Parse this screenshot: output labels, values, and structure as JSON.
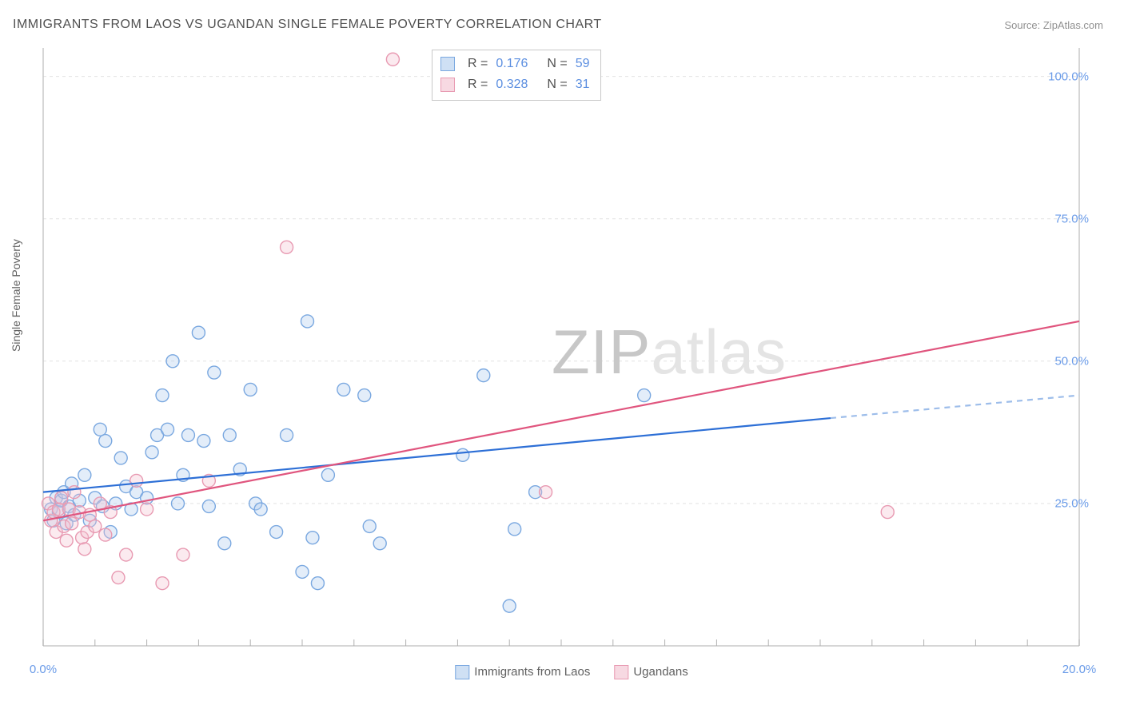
{
  "title": "IMMIGRANTS FROM LAOS VS UGANDAN SINGLE FEMALE POVERTY CORRELATION CHART",
  "source_prefix": "Source: ",
  "source_name": "ZipAtlas.com",
  "ylabel": "Single Female Poverty",
  "watermark_zip": "ZIP",
  "watermark_atlas": "atlas",
  "chart": {
    "type": "scatter",
    "background_color": "#ffffff",
    "grid_color": "#e2e2e2",
    "axis_color": "#c8c8c8",
    "tick_color": "#b0b0b0",
    "label_fontsize": 14,
    "tick_fontsize": 15,
    "title_fontsize": 16,
    "xlim": [
      0,
      20
    ],
    "ylim": [
      0,
      105
    ],
    "xticks": [
      {
        "v": 0,
        "label": "0.0%"
      },
      {
        "v": 20,
        "label": "20.0%"
      }
    ],
    "yticks": [
      {
        "v": 25,
        "label": "25.0%"
      },
      {
        "v": 50,
        "label": "50.0%"
      },
      {
        "v": 75,
        "label": "75.0%"
      },
      {
        "v": 100,
        "label": "100.0%"
      }
    ],
    "xtick_minor_step": 1,
    "marker_radius": 8,
    "marker_stroke_width": 1.4,
    "marker_fill_opacity": 0.35,
    "trend_line_width": 2.2,
    "series": [
      {
        "name": "Immigrants from Laos",
        "color_stroke": "#7aa8e0",
        "color_fill": "#aecbed",
        "trend_color": "#2d6fd6",
        "trend_dash_color": "#9dbdea",
        "trend": {
          "x1": 0,
          "y1": 27,
          "x2": 15.2,
          "y2": 40,
          "x2_dash": 20,
          "y2_dash": 44
        },
        "points": [
          [
            0.15,
            24
          ],
          [
            0.2,
            22
          ],
          [
            0.25,
            26
          ],
          [
            0.3,
            23.5
          ],
          [
            0.35,
            25.5
          ],
          [
            0.4,
            27
          ],
          [
            0.45,
            21.5
          ],
          [
            0.5,
            24.5
          ],
          [
            0.55,
            28.5
          ],
          [
            0.6,
            23
          ],
          [
            0.7,
            25.5
          ],
          [
            0.8,
            30
          ],
          [
            0.9,
            22
          ],
          [
            1.0,
            26
          ],
          [
            1.1,
            38
          ],
          [
            1.15,
            24.5
          ],
          [
            1.2,
            36
          ],
          [
            1.3,
            20
          ],
          [
            1.4,
            25
          ],
          [
            1.5,
            33
          ],
          [
            1.6,
            28
          ],
          [
            1.7,
            24
          ],
          [
            1.8,
            27
          ],
          [
            2.0,
            26
          ],
          [
            2.1,
            34
          ],
          [
            2.2,
            37
          ],
          [
            2.3,
            44
          ],
          [
            2.4,
            38
          ],
          [
            2.5,
            50
          ],
          [
            2.6,
            25
          ],
          [
            2.7,
            30
          ],
          [
            2.8,
            37
          ],
          [
            3.0,
            55
          ],
          [
            3.1,
            36
          ],
          [
            3.2,
            24.5
          ],
          [
            3.3,
            48
          ],
          [
            3.5,
            18
          ],
          [
            3.6,
            37
          ],
          [
            3.8,
            31
          ],
          [
            4.0,
            45
          ],
          [
            4.1,
            25
          ],
          [
            4.2,
            24
          ],
          [
            4.5,
            20
          ],
          [
            4.7,
            37
          ],
          [
            5.0,
            13
          ],
          [
            5.1,
            57
          ],
          [
            5.2,
            19
          ],
          [
            5.3,
            11
          ],
          [
            5.5,
            30
          ],
          [
            5.8,
            45
          ],
          [
            6.2,
            44
          ],
          [
            6.3,
            21
          ],
          [
            6.5,
            18
          ],
          [
            8.1,
            33.5
          ],
          [
            8.5,
            47.5
          ],
          [
            9.0,
            7
          ],
          [
            9.1,
            20.5
          ],
          [
            9.5,
            27
          ],
          [
            11.6,
            44
          ]
        ]
      },
      {
        "name": "Ugandans",
        "color_stroke": "#e89ab2",
        "color_fill": "#f3c3d0",
        "trend_color": "#e0557e",
        "trend": {
          "x1": 0,
          "y1": 22,
          "x2": 20,
          "y2": 57
        },
        "points": [
          [
            0.1,
            25
          ],
          [
            0.15,
            22
          ],
          [
            0.2,
            23.5
          ],
          [
            0.25,
            20
          ],
          [
            0.3,
            24
          ],
          [
            0.35,
            26
          ],
          [
            0.4,
            21
          ],
          [
            0.45,
            18.5
          ],
          [
            0.5,
            24
          ],
          [
            0.55,
            21.5
          ],
          [
            0.6,
            27
          ],
          [
            0.7,
            23.5
          ],
          [
            0.75,
            19
          ],
          [
            0.8,
            17
          ],
          [
            0.85,
            20
          ],
          [
            0.9,
            23
          ],
          [
            1.0,
            21
          ],
          [
            1.1,
            25
          ],
          [
            1.2,
            19.5
          ],
          [
            1.3,
            23.5
          ],
          [
            1.45,
            12
          ],
          [
            1.6,
            16
          ],
          [
            1.8,
            29
          ],
          [
            2.0,
            24
          ],
          [
            2.3,
            11
          ],
          [
            2.7,
            16
          ],
          [
            3.2,
            29
          ],
          [
            4.7,
            70
          ],
          [
            6.75,
            103
          ],
          [
            9.7,
            27
          ],
          [
            16.3,
            23.5
          ]
        ]
      }
    ],
    "stats_legend": [
      {
        "swatch_stroke": "#7aa8e0",
        "swatch_fill": "#cfe0f4",
        "r_label": "R =",
        "r": "0.176",
        "n_label": "N =",
        "n": "59"
      },
      {
        "swatch_stroke": "#e89ab2",
        "swatch_fill": "#f7d9e2",
        "r_label": "R =",
        "r": "0.328",
        "n_label": "N =",
        "n": "31"
      }
    ],
    "bottom_legend": [
      {
        "swatch_stroke": "#7aa8e0",
        "swatch_fill": "#cfe0f4",
        "label": "Immigrants from Laos"
      },
      {
        "swatch_stroke": "#e89ab2",
        "swatch_fill": "#f7d9e2",
        "label": "Ugandans"
      }
    ]
  }
}
